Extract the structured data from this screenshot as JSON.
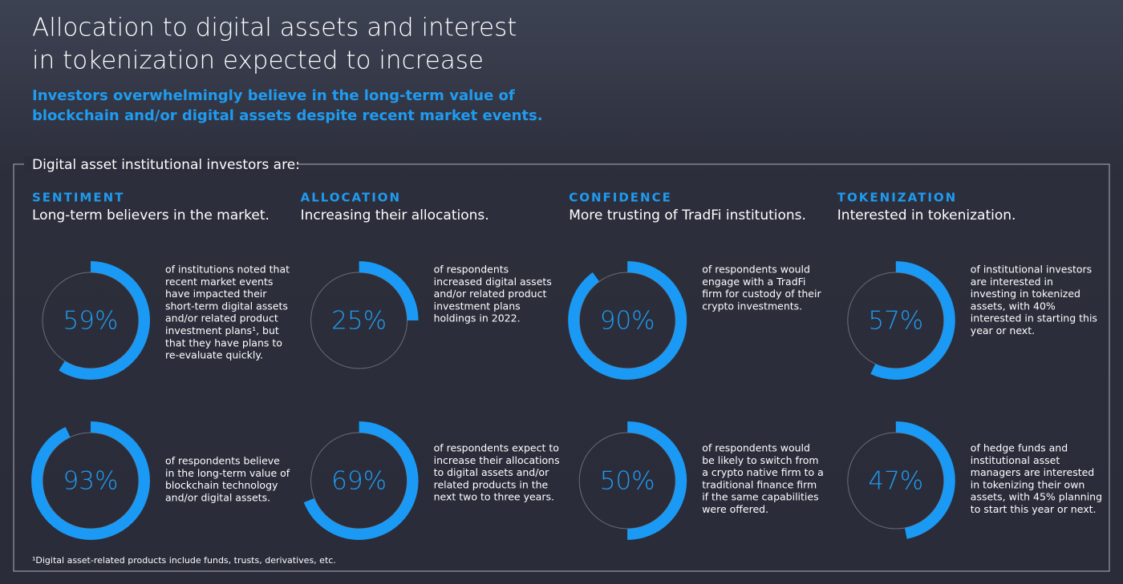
{
  "title": [
    "Allocation to digital assets and interest",
    "in tokenization expected to increase"
  ],
  "subtitle": [
    "Investors overwhelmingly believe in the long-term value of",
    "blockchain and/or digital assets despite recent market events."
  ],
  "box_label": "Digital asset institutional investors are:",
  "footnote": "¹Digital asset-related products include funds, trusts, derivatives, etc.",
  "columns": [
    {
      "heading": "SENTIMENT",
      "subheading": "Long-term believers in the market.",
      "items": [
        {
          "value": 59,
          "value_label": "59%",
          "text": [
            "of institutions noted that",
            "recent market events",
            "have impacted their",
            "short-term digital assets",
            "and/or related product",
            "investment plans¹, but",
            "that they have plans to",
            "re-evaluate quickly."
          ]
        },
        {
          "value": 93,
          "value_label": "93%",
          "text": [
            "of respondents believe",
            "in the long-term value of",
            "blockchain technology",
            "and/or digital assets."
          ]
        }
      ]
    },
    {
      "heading": "ALLOCATION",
      "subheading": "Increasing their allocations.",
      "items": [
        {
          "value": 25,
          "value_label": "25%",
          "text": [
            "of respondents",
            "increased digital assets",
            "and/or related product",
            "investment plans",
            "holdings in 2022."
          ]
        },
        {
          "value": 69,
          "value_label": "69%",
          "text": [
            "of respondents expect to",
            "increase their allocations",
            "to digital assets and/or",
            "related products in the",
            "next two to three years."
          ]
        }
      ]
    },
    {
      "heading": "CONFIDENCE",
      "subheading": "More trusting of TradFi institutions.",
      "items": [
        {
          "value": 90,
          "value_label": "90%",
          "text": [
            "of respondents would",
            "engage with a TradFi",
            "firm for custody of their",
            "crypto investments."
          ]
        },
        {
          "value": 50,
          "value_label": "50%",
          "text": [
            "of respondents would",
            "be likely to switch from",
            "a crypto native firm to a",
            "traditional finance firm",
            "if the same capabilities",
            "were offered."
          ]
        }
      ]
    },
    {
      "heading": "TOKENIZATION",
      "subheading": "Interested in tokenization.",
      "items": [
        {
          "value": 57,
          "value_label": "57%",
          "text": [
            "of institutional investors",
            "are interested in",
            "investing in tokenized",
            "assets, with 40%",
            "interested in starting this",
            "year or next."
          ]
        },
        {
          "value": 47,
          "value_label": "47%",
          "text": [
            "of hedge funds and",
            "institutional asset",
            "managers are interested",
            "in tokenizing their own",
            "assets, with 45% planning",
            "to start this year or next."
          ]
        }
      ]
    }
  ]
}
